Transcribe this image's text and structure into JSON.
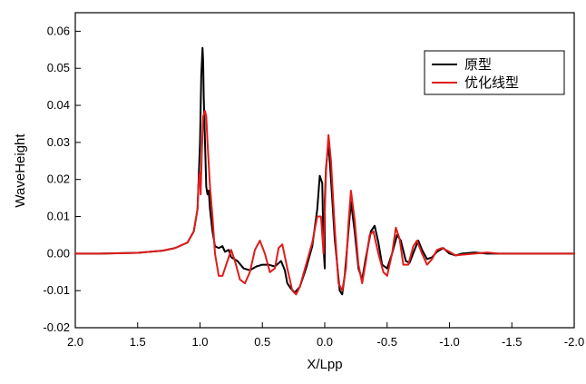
{
  "chart_data": {
    "type": "line",
    "title": "",
    "xlabel": "X/Lpp",
    "ylabel": "WaveHeight",
    "xlim": [
      2.0,
      -2.0
    ],
    "ylim": [
      -0.02,
      0.065
    ],
    "x_reversed": true,
    "x_ticks": [
      2.0,
      1.5,
      1.0,
      0.5,
      0.0,
      -0.5,
      -1.0,
      -1.5,
      -2.0
    ],
    "x_tick_labels": [
      "2.0",
      "1.5",
      "1.0",
      "0.5",
      "0.0",
      "-0.5",
      "-1.0",
      "-1.5",
      "-2.0"
    ],
    "y_ticks": [
      -0.02,
      -0.01,
      0.0,
      0.01,
      0.02,
      0.03,
      0.04,
      0.05,
      0.06
    ],
    "y_tick_labels": [
      "-0.02",
      "-0.01",
      "0.00",
      "0.01",
      "0.02",
      "0.03",
      "0.04",
      "0.05",
      "0.06"
    ],
    "grid": false,
    "legend_position": "top-right",
    "series": [
      {
        "name": "原型",
        "color": "#000000",
        "points": [
          [
            2.0,
            0.0
          ],
          [
            1.8,
            0.0
          ],
          [
            1.5,
            0.0002
          ],
          [
            1.3,
            0.0008
          ],
          [
            1.2,
            0.0015
          ],
          [
            1.1,
            0.003
          ],
          [
            1.05,
            0.006
          ],
          [
            1.02,
            0.012
          ],
          [
            1.0,
            0.03
          ],
          [
            0.99,
            0.048
          ],
          [
            0.98,
            0.0555
          ],
          [
            0.975,
            0.052
          ],
          [
            0.97,
            0.042
          ],
          [
            0.96,
            0.03
          ],
          [
            0.95,
            0.018
          ],
          [
            0.94,
            0.016
          ],
          [
            0.93,
            0.017
          ],
          [
            0.92,
            0.012
          ],
          [
            0.9,
            0.006
          ],
          [
            0.88,
            0.002
          ],
          [
            0.85,
            0.0015
          ],
          [
            0.82,
            0.002
          ],
          [
            0.8,
            0.0005
          ],
          [
            0.77,
            0.001
          ],
          [
            0.75,
            -0.001
          ],
          [
            0.7,
            -0.002
          ],
          [
            0.65,
            -0.004
          ],
          [
            0.6,
            -0.0045
          ],
          [
            0.55,
            -0.0035
          ],
          [
            0.5,
            -0.003
          ],
          [
            0.45,
            -0.003
          ],
          [
            0.4,
            -0.0035
          ],
          [
            0.35,
            -0.002
          ],
          [
            0.32,
            -0.0045
          ],
          [
            0.3,
            -0.008
          ],
          [
            0.27,
            -0.0095
          ],
          [
            0.24,
            -0.0105
          ],
          [
            0.2,
            -0.009
          ],
          [
            0.15,
            -0.004
          ],
          [
            0.1,
            0.002
          ],
          [
            0.06,
            0.012
          ],
          [
            0.04,
            0.021
          ],
          [
            0.02,
            0.019
          ],
          [
            0.01,
            0.002
          ],
          [
            0.0,
            -0.004
          ],
          [
            0.0,
            0.014
          ],
          [
            -0.01,
            0.023
          ],
          [
            -0.03,
            0.03
          ],
          [
            -0.05,
            0.02
          ],
          [
            -0.08,
            0.004
          ],
          [
            -0.12,
            -0.01
          ],
          [
            -0.14,
            -0.011
          ],
          [
            -0.16,
            -0.006
          ],
          [
            -0.19,
            0.006
          ],
          [
            -0.21,
            0.014
          ],
          [
            -0.24,
            0.006
          ],
          [
            -0.27,
            -0.004
          ],
          [
            -0.3,
            -0.007
          ],
          [
            -0.33,
            -0.001
          ],
          [
            -0.37,
            0.006
          ],
          [
            -0.4,
            0.0075
          ],
          [
            -0.43,
            0.003
          ],
          [
            -0.46,
            -0.003
          ],
          [
            -0.5,
            -0.004
          ],
          [
            -0.54,
            0.0
          ],
          [
            -0.58,
            0.005
          ],
          [
            -0.61,
            0.0035
          ],
          [
            -0.65,
            -0.002
          ],
          [
            -0.68,
            -0.0025
          ],
          [
            -0.72,
            0.001
          ],
          [
            -0.75,
            0.0035
          ],
          [
            -0.78,
            0.001
          ],
          [
            -0.82,
            -0.0015
          ],
          [
            -0.86,
            -0.001
          ],
          [
            -0.9,
            0.0005
          ],
          [
            -0.95,
            0.0015
          ],
          [
            -1.0,
            0.0
          ],
          [
            -1.05,
            -0.0005
          ],
          [
            -1.1,
            0.0
          ],
          [
            -1.2,
            0.0003
          ],
          [
            -1.3,
            0.0
          ],
          [
            -1.5,
            0.0
          ],
          [
            -2.0,
            0.0
          ]
        ]
      },
      {
        "name": "优化线型",
        "color": "#e01c1c",
        "points": [
          [
            2.0,
            0.0
          ],
          [
            1.8,
            0.0
          ],
          [
            1.5,
            0.0002
          ],
          [
            1.3,
            0.0008
          ],
          [
            1.2,
            0.0015
          ],
          [
            1.1,
            0.003
          ],
          [
            1.05,
            0.006
          ],
          [
            1.02,
            0.012
          ],
          [
            1.01,
            0.02
          ],
          [
            1.0,
            0.022
          ],
          [
            0.995,
            0.016
          ],
          [
            0.985,
            0.028
          ],
          [
            0.975,
            0.037
          ],
          [
            0.96,
            0.0385
          ],
          [
            0.95,
            0.037
          ],
          [
            0.94,
            0.03
          ],
          [
            0.92,
            0.018
          ],
          [
            0.9,
            0.01
          ],
          [
            0.88,
            0.0
          ],
          [
            0.85,
            -0.006
          ],
          [
            0.82,
            -0.006
          ],
          [
            0.78,
            -0.002
          ],
          [
            0.75,
            0.001
          ],
          [
            0.72,
            -0.002
          ],
          [
            0.68,
            -0.007
          ],
          [
            0.64,
            -0.008
          ],
          [
            0.6,
            -0.005
          ],
          [
            0.56,
            0.001
          ],
          [
            0.52,
            0.0035
          ],
          [
            0.48,
            0.0
          ],
          [
            0.44,
            -0.005
          ],
          [
            0.4,
            -0.004
          ],
          [
            0.37,
            0.0015
          ],
          [
            0.34,
            0.0025
          ],
          [
            0.3,
            -0.004
          ],
          [
            0.26,
            -0.01
          ],
          [
            0.23,
            -0.011
          ],
          [
            0.2,
            -0.009
          ],
          [
            0.15,
            -0.003
          ],
          [
            0.1,
            0.003
          ],
          [
            0.06,
            0.01
          ],
          [
            0.03,
            0.01
          ],
          [
            0.01,
            0.0
          ],
          [
            -0.01,
            0.022
          ],
          [
            -0.03,
            0.032
          ],
          [
            -0.05,
            0.025
          ],
          [
            -0.08,
            0.007
          ],
          [
            -0.11,
            -0.008
          ],
          [
            -0.14,
            -0.01
          ],
          [
            -0.17,
            -0.004
          ],
          [
            -0.19,
            0.008
          ],
          [
            -0.21,
            0.017
          ],
          [
            -0.24,
            0.009
          ],
          [
            -0.27,
            -0.003
          ],
          [
            -0.3,
            -0.008
          ],
          [
            -0.33,
            -0.002
          ],
          [
            -0.36,
            0.005
          ],
          [
            -0.39,
            0.006
          ],
          [
            -0.43,
            0.0
          ],
          [
            -0.47,
            -0.005
          ],
          [
            -0.5,
            -0.006
          ],
          [
            -0.54,
            0.0
          ],
          [
            -0.57,
            0.007
          ],
          [
            -0.6,
            0.004
          ],
          [
            -0.63,
            -0.003
          ],
          [
            -0.67,
            -0.003
          ],
          [
            -0.71,
            0.002
          ],
          [
            -0.74,
            0.0035
          ],
          [
            -0.78,
            0.0
          ],
          [
            -0.82,
            -0.003
          ],
          [
            -0.86,
            -0.0015
          ],
          [
            -0.9,
            0.001
          ],
          [
            -0.94,
            0.0015
          ],
          [
            -1.0,
            0.0005
          ],
          [
            -1.05,
            -0.0005
          ],
          [
            -1.1,
            -0.0003
          ],
          [
            -1.2,
            0.0
          ],
          [
            -1.3,
            0.0003
          ],
          [
            -1.4,
            0.0
          ],
          [
            -1.5,
            0.0
          ],
          [
            -2.0,
            0.0
          ]
        ]
      }
    ]
  }
}
